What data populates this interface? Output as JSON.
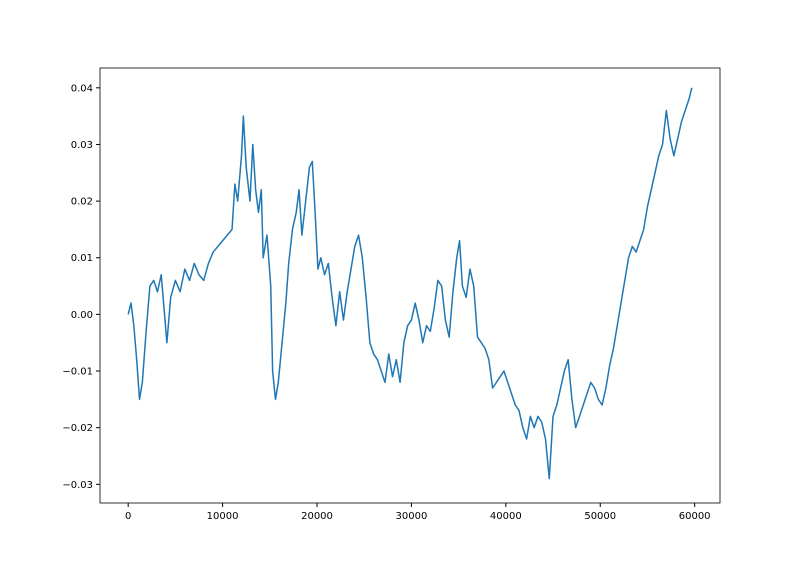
{
  "chart_data": {
    "type": "line",
    "x": [
      0,
      300,
      600,
      900,
      1200,
      1500,
      1900,
      2300,
      2700,
      3100,
      3500,
      3800,
      4100,
      4500,
      5000,
      5500,
      6000,
      6500,
      7000,
      7500,
      8000,
      8500,
      9000,
      9500,
      10000,
      10500,
      11000,
      11300,
      11600,
      12000,
      12200,
      12500,
      12900,
      13200,
      13500,
      13800,
      14100,
      14300,
      14700,
      15100,
      15300,
      15600,
      15900,
      16300,
      16700,
      17000,
      17400,
      17800,
      18100,
      18400,
      18800,
      19200,
      19500,
      19800,
      20100,
      20400,
      20800,
      21200,
      21600,
      22000,
      22400,
      22800,
      23200,
      23600,
      24000,
      24400,
      24800,
      25200,
      25600,
      26000,
      26400,
      26800,
      27200,
      27600,
      28000,
      28400,
      28800,
      29200,
      29600,
      30000,
      30400,
      30800,
      31200,
      31600,
      32000,
      32400,
      32800,
      33200,
      33600,
      34000,
      34400,
      34800,
      35100,
      35400,
      35800,
      36200,
      36600,
      37000,
      37400,
      37800,
      38200,
      38600,
      39000,
      39400,
      39800,
      40200,
      40600,
      41000,
      41400,
      41800,
      42200,
      42600,
      43000,
      43400,
      43800,
      44200,
      44600,
      45000,
      45400,
      45800,
      46200,
      46600,
      47000,
      47400,
      47800,
      48200,
      48600,
      49000,
      49400,
      49800,
      50200,
      50600,
      51000,
      51400,
      51800,
      52200,
      52600,
      53000,
      53400,
      53800,
      54200,
      54600,
      55000,
      55400,
      55800,
      56200,
      56600,
      57000,
      57400,
      57800,
      58200,
      58600,
      59000,
      59400,
      59700
    ],
    "series": [
      {
        "color": "#1f77b4",
        "values": [
          0,
          0.002,
          -0.002,
          -0.008,
          -0.015,
          -0.012,
          -0.003,
          0.005,
          0.006,
          0.004,
          0.007,
          0.001,
          -0.005,
          0.003,
          0.006,
          0.004,
          0.008,
          0.006,
          0.009,
          0.007,
          0.006,
          0.009,
          0.011,
          0.012,
          0.013,
          0.014,
          0.015,
          0.023,
          0.02,
          0.028,
          0.035,
          0.026,
          0.02,
          0.03,
          0.022,
          0.018,
          0.022,
          0.01,
          0.014,
          0.005,
          -0.01,
          -0.015,
          -0.012,
          -0.005,
          0.002,
          0.009,
          0.015,
          0.018,
          0.022,
          0.014,
          0.02,
          0.026,
          0.027,
          0.018,
          0.008,
          0.01,
          0.007,
          0.009,
          0.003,
          -0.002,
          0.004,
          -0.001,
          0.004,
          0.008,
          0.012,
          0.014,
          0.01,
          0.003,
          -0.005,
          -0.007,
          -0.008,
          -0.01,
          -0.012,
          -0.007,
          -0.011,
          -0.008,
          -0.012,
          -0.005,
          -0.002,
          -0.001,
          0.002,
          -0.001,
          -0.005,
          -0.002,
          -0.003,
          0.001,
          0.006,
          0.005,
          -0.001,
          -0.004,
          0.004,
          0.01,
          0.013,
          0.005,
          0.003,
          0.008,
          0.005,
          -0.004,
          -0.005,
          -0.006,
          -0.008,
          -0.013,
          -0.012,
          -0.011,
          -0.01,
          -0.012,
          -0.014,
          -0.016,
          -0.017,
          -0.02,
          -0.022,
          -0.018,
          -0.02,
          -0.018,
          -0.019,
          -0.022,
          -0.029,
          -0.018,
          -0.016,
          -0.013,
          -0.01,
          -0.008,
          -0.015,
          -0.02,
          -0.018,
          -0.016,
          -0.014,
          -0.012,
          -0.013,
          -0.015,
          -0.016,
          -0.013,
          -0.009,
          -0.006,
          -0.002,
          0.002,
          0.006,
          0.01,
          0.012,
          0.011,
          0.013,
          0.015,
          0.019,
          0.022,
          0.025,
          0.028,
          0.03,
          0.036,
          0.031,
          0.028,
          0.031,
          0.034,
          0.036,
          0.038,
          0.04
        ]
      }
    ],
    "xlim": [
      -2985,
      62685
    ],
    "xticks": [
      0,
      10000,
      20000,
      30000,
      40000,
      50000,
      60000
    ],
    "ylim": [
      -0.0333,
      0.0435
    ],
    "yticks": [
      {
        "value": -0.03,
        "label": "−0.03"
      },
      {
        "value": -0.02,
        "label": "−0.02"
      },
      {
        "value": -0.01,
        "label": "−0.01"
      },
      {
        "value": 0,
        "label": "0.00"
      },
      {
        "value": 0.01,
        "label": "0.01"
      },
      {
        "value": 0.02,
        "label": "0.02"
      },
      {
        "value": 0.03,
        "label": "0.03"
      },
      {
        "value": 0.04,
        "label": "0.04"
      }
    ]
  }
}
